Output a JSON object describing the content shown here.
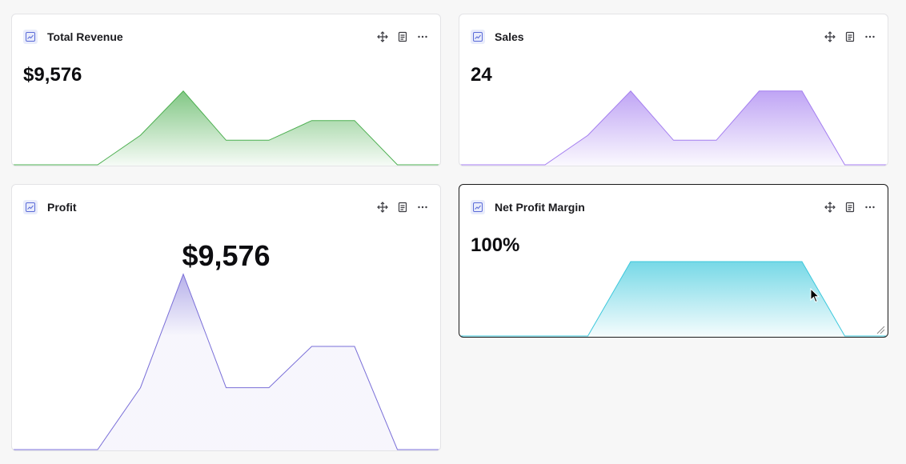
{
  "cards": [
    {
      "title": "Total Revenue",
      "value": "$9,576",
      "icon": "line-chart-icon",
      "color": "#4caf50",
      "chart_data": {
        "type": "area",
        "points": [
          0,
          0,
          0,
          0.3,
          0.75,
          0.25,
          0.25,
          0.45,
          0.45,
          0,
          0
        ]
      }
    },
    {
      "title": "Sales",
      "value": "24",
      "icon": "line-chart-icon",
      "color": "#a47ef0",
      "chart_data": {
        "type": "area",
        "points": [
          0,
          0,
          0,
          0.3,
          0.75,
          0.25,
          0.25,
          0.75,
          0.75,
          0,
          0
        ]
      }
    },
    {
      "title": "Profit",
      "value": "$9,576",
      "icon": "line-chart-icon",
      "color": "#7a6fd8",
      "chart_data": {
        "type": "area",
        "points": [
          0,
          0,
          0,
          0.3,
          0.85,
          0.3,
          0.3,
          0.5,
          0.5,
          0,
          0
        ]
      }
    },
    {
      "title": "Net Profit Margin",
      "value": "100%",
      "icon": "line-chart-icon",
      "color": "#3cc8dc",
      "chart_data": {
        "type": "area",
        "points": [
          0,
          0,
          0,
          0,
          0.75,
          0.75,
          0.75,
          0.75,
          0.75,
          0,
          0
        ]
      }
    }
  ],
  "actions": [
    {
      "name": "move",
      "icon": "move-icon"
    },
    {
      "name": "notes",
      "icon": "document-icon"
    },
    {
      "name": "more",
      "icon": "more-horizontal-icon"
    }
  ]
}
